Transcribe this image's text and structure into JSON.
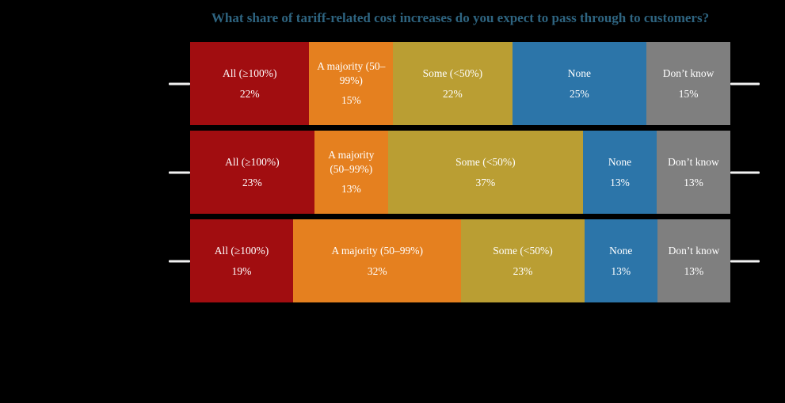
{
  "chart_data": {
    "type": "bar",
    "orientation": "horizontal",
    "stacked": true,
    "title": "What share of tariff-related cost increases do you expect to pass through to customers?",
    "title_color": "#2E6480",
    "background_color": "#000000",
    "axis_tick_color": "#F2F2F2",
    "label_text_color": "#FFFFFF",
    "unit": "%",
    "legend": "none (labels drawn inside segments)",
    "series": [
      {
        "name": "All (≥100%)",
        "color": "#A10D10",
        "values": [
          22,
          23,
          19
        ]
      },
      {
        "name": "A majority (50–99%)",
        "color": "#E5801F",
        "values": [
          15,
          13,
          32
        ]
      },
      {
        "name": "Some (<50%)",
        "color": "#BA9E33",
        "values": [
          22,
          37,
          23
        ]
      },
      {
        "name": "None",
        "color": "#2C75A9",
        "values": [
          25,
          13,
          13
        ]
      },
      {
        "name": "Don’t know",
        "color": "#7F7F7F",
        "values": [
          15,
          13,
          13
        ]
      }
    ],
    "rows": [
      {
        "segments": [
          {
            "label": "All (≥100%)",
            "pct": "22%",
            "value": 22,
            "color": "#A10D10"
          },
          {
            "label": "A majority (50–99%)",
            "pct": "15%",
            "value": 15,
            "color": "#E5801F"
          },
          {
            "label": "Some (<50%)",
            "pct": "22%",
            "value": 22,
            "color": "#BA9E33"
          },
          {
            "label": "None",
            "pct": "25%",
            "value": 25,
            "color": "#2C75A9"
          },
          {
            "label": "Don’t know",
            "pct": "15%",
            "value": 15,
            "color": "#7F7F7F"
          }
        ]
      },
      {
        "segments": [
          {
            "label": "All (≥100%)",
            "pct": "23%",
            "value": 23,
            "color": "#A10D10"
          },
          {
            "label": "A majority (50–99%)",
            "pct": "13%",
            "value": 13,
            "color": "#E5801F"
          },
          {
            "label": "Some (<50%)",
            "pct": "37%",
            "value": 37,
            "color": "#BA9E33"
          },
          {
            "label": "None",
            "pct": "13%",
            "value": 13,
            "color": "#2C75A9"
          },
          {
            "label": "Don’t know",
            "pct": "13%",
            "value": 13,
            "color": "#7F7F7F"
          }
        ]
      },
      {
        "segments": [
          {
            "label": "All (≥100%)",
            "pct": "19%",
            "value": 19,
            "color": "#A10D10"
          },
          {
            "label": "A majority (50–99%)",
            "pct": "32%",
            "value": 32,
            "color": "#E5801F"
          },
          {
            "label": "Some (<50%)",
            "pct": "23%",
            "value": 23,
            "color": "#BA9E33"
          },
          {
            "label": "None",
            "pct": "13%",
            "value": 13,
            "color": "#2C75A9"
          },
          {
            "label": "Don’t know",
            "pct": "13%",
            "value": 13,
            "color": "#7F7F7F"
          }
        ]
      }
    ]
  }
}
